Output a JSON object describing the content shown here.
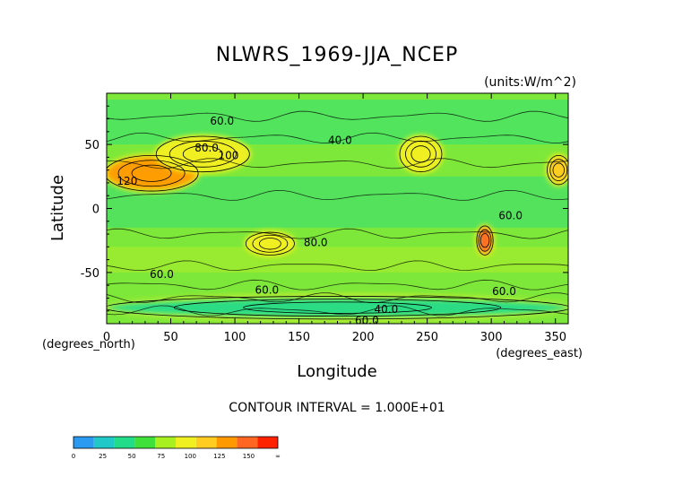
{
  "chart_data": {
    "type": "heatmap",
    "title": "NLWRS_1969-JJA_NCEP",
    "units": "(units:W/m^2)",
    "xlabel": "Longitude",
    "ylabel": "Latitude",
    "x_unit_note": "(degrees_east)",
    "y_unit_note": "(degrees_north)",
    "xlim": [
      0,
      360
    ],
    "ylim": [
      -90,
      90
    ],
    "x_ticks": [
      0,
      50,
      100,
      150,
      200,
      250,
      300,
      350
    ],
    "y_ticks": [
      50,
      0,
      -50
    ],
    "contour_interval_text": "CONTOUR INTERVAL = 1.000E+01",
    "contour_labels": [
      {
        "lon": 90,
        "lat": 68,
        "text": "60.0"
      },
      {
        "lon": 182,
        "lat": 53,
        "text": "40.0"
      },
      {
        "lon": 78,
        "lat": 47,
        "text": "80.0"
      },
      {
        "lon": 95,
        "lat": 41,
        "text": "100"
      },
      {
        "lon": 16,
        "lat": 21,
        "text": "120"
      },
      {
        "lon": 163,
        "lat": -27,
        "text": "80.0"
      },
      {
        "lon": 43,
        "lat": -52,
        "text": "60.0"
      },
      {
        "lon": 125,
        "lat": -64,
        "text": "60.0"
      },
      {
        "lon": 315,
        "lat": -6,
        "text": "60.0"
      },
      {
        "lon": 310,
        "lat": -65,
        "text": "60.0"
      },
      {
        "lon": 218,
        "lat": -79,
        "text": "40.0"
      },
      {
        "lon": 203,
        "lat": -88,
        "text": "60.0"
      }
    ],
    "colorbar": {
      "ticks": [
        "0",
        "25",
        "50",
        "75",
        "100",
        "125",
        "150",
        "∞"
      ],
      "colors": [
        "#2a9bf0",
        "#20c8c8",
        "#22dc8a",
        "#3fe03a",
        "#a8f020",
        "#f0f020",
        "#ffcc22",
        "#ff9900",
        "#ff6622",
        "#ff2200"
      ]
    },
    "background_value_approx": 55,
    "features": [
      {
        "lon_range": [
          0,
          70
        ],
        "lat_range": [
          15,
          40
        ],
        "value": 130
      },
      {
        "lon_range": [
          40,
          110
        ],
        "lat_range": [
          30,
          55
        ],
        "value": 90
      },
      {
        "lon_range": [
          230,
          260
        ],
        "lat_range": [
          30,
          55
        ],
        "value": 90
      },
      {
        "lon_range": [
          110,
          145
        ],
        "lat_range": [
          -35,
          -20
        ],
        "value": 95
      },
      {
        "lon_range": [
          290,
          300
        ],
        "lat_range": [
          -35,
          -15
        ],
        "value": 140
      },
      {
        "lon_range": [
          345,
          360
        ],
        "lat_range": [
          20,
          40
        ],
        "value": 110
      },
      {
        "lon_range": [
          0,
          360
        ],
        "lat_range": [
          -85,
          -70
        ],
        "value": 35
      }
    ]
  }
}
